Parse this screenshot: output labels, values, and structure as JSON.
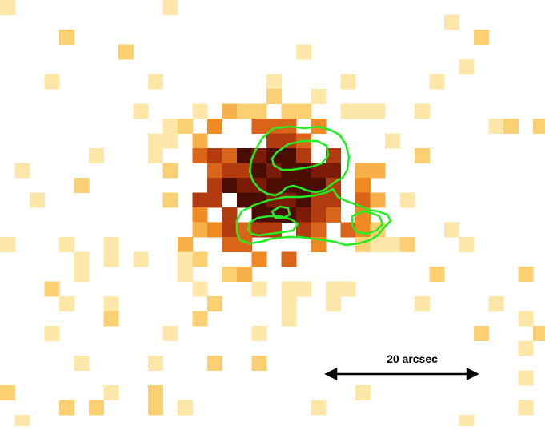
{
  "image": {
    "kind": "pixelated astronomical count map with radio contour overlay",
    "colormap": [
      "#fde7a8",
      "#fbd073",
      "#f7b04a",
      "#ef8a22",
      "#d9641a",
      "#b23b10",
      "#7a1c08",
      "#4a0d04"
    ],
    "contour_color": "#22ee22"
  },
  "scale_bar": {
    "label": "20 arcsec"
  }
}
